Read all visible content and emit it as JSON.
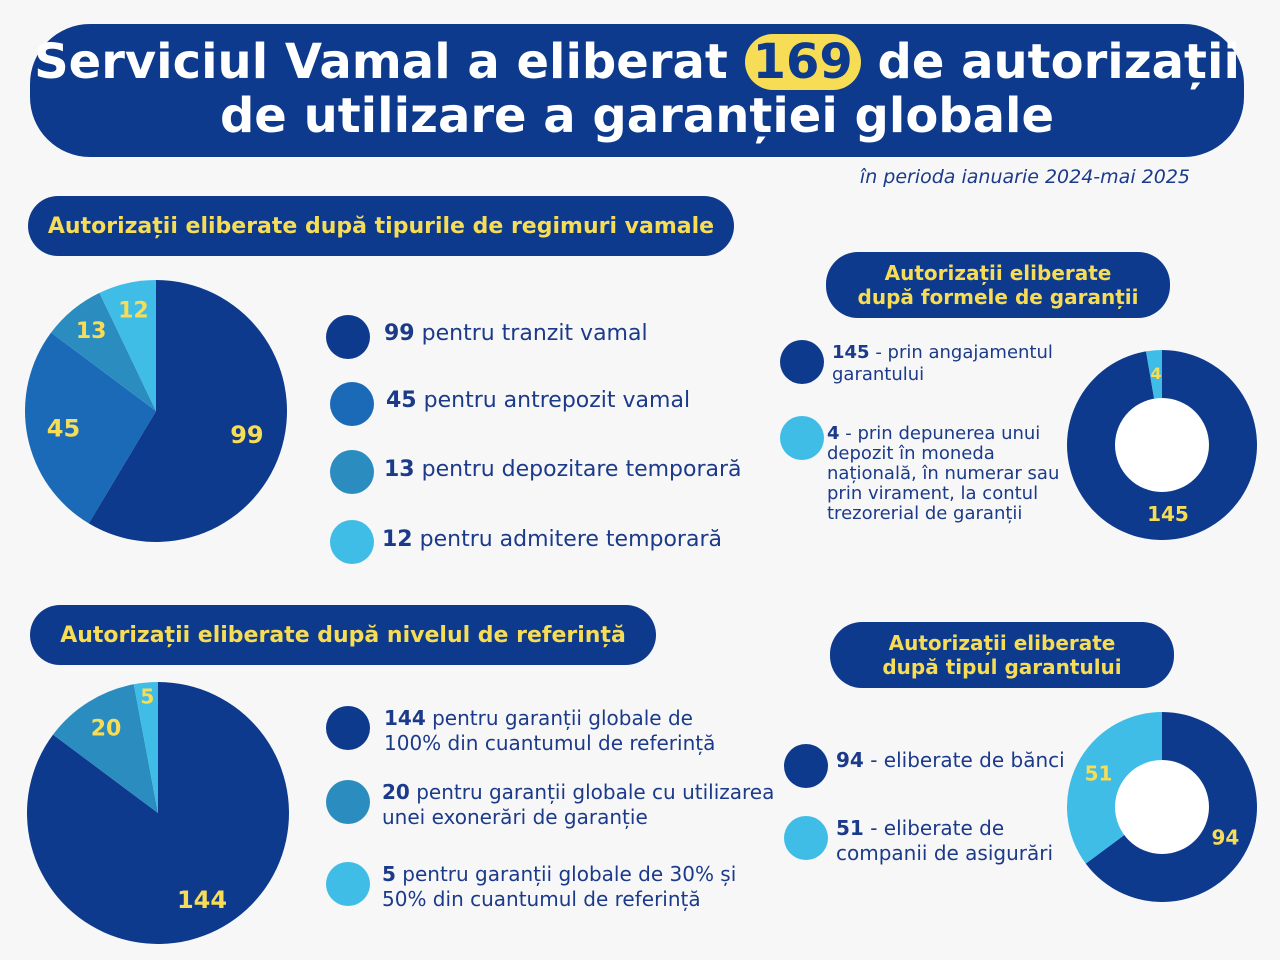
{
  "header": {
    "title_part1": "Serviciul Vamal a eliberat",
    "title_highlight": "169",
    "title_part2": "de autorizații",
    "title_line2": "de utilizare a garanției globale",
    "subtitle": "în perioda ianuarie 2024-mai 2025"
  },
  "colors": {
    "dark_navy": "#0d3a8c",
    "medium_blue": "#1b6ab8",
    "teal_blue": "#2a8cbf",
    "light_blue": "#3fbde6",
    "yellow": "#f7dc56"
  },
  "sections": {
    "regimuri": {
      "title": "Autorizații eliberate după tipurile de regimuri vamale"
    },
    "forme": {
      "title_line1": "Autorizații eliberate",
      "title_line2": "după formele de garanții"
    },
    "nivel": {
      "title": "Autorizații eliberate după nivelul de referință"
    },
    "garant": {
      "title_line1": "Autorizații eliberate",
      "title_line2": "după tipul garantului"
    }
  },
  "chart_data": [
    {
      "type": "pie",
      "categories": [
        "pentru tranzit vamal",
        "pentru antrepozit vamal",
        "pentru depozitare temporară",
        "pentru admitere temporară"
      ],
      "values": [
        99,
        45,
        13,
        12
      ],
      "colors": [
        "#0d3a8c",
        "#1b6ab8",
        "#2a8cbf",
        "#3fbde6"
      ],
      "title": "Autorizații eliberate după tipurile de regimuri vamale"
    },
    {
      "type": "pie",
      "categories": [
        "- prin angajamentul garantului",
        "- prin depunerea unui depozit în moneda națională, în numerar sau prin virament, la contul trezorerial de garanții"
      ],
      "values": [
        145,
        4
      ],
      "colors": [
        "#0d3a8c",
        "#3fbde6"
      ],
      "title": "Autorizații eliberate după formele de garanții"
    },
    {
      "type": "pie",
      "categories": [
        "pentru garanții globale de 100% din cuantumul de referință",
        "pentru garanții globale cu utilizarea unei exonerări de garanție",
        "pentru garanții globale de 30% și 50% din cuantumul de referință"
      ],
      "values": [
        144,
        20,
        5
      ],
      "colors": [
        "#0d3a8c",
        "#2a8cbf",
        "#3fbde6"
      ],
      "title": "Autorizații eliberate după nivelul de referință"
    },
    {
      "type": "pie",
      "categories": [
        "- eliberate de bănci",
        "- eliberate de companii de asigurări"
      ],
      "values": [
        94,
        51
      ],
      "colors": [
        "#0d3a8c",
        "#3fbde6"
      ],
      "title": "Autorizații eliberate după tipul garantului"
    }
  ],
  "legends": {
    "regimuri": [
      {
        "value": "99",
        "text": "pentru tranzit vamal"
      },
      {
        "value": "45",
        "text": "pentru antrepozit vamal"
      },
      {
        "value": "13",
        "text": "pentru depozitare temporară"
      },
      {
        "value": "12",
        "text": "pentru admitere temporară"
      }
    ],
    "forme": [
      {
        "value": "145",
        "text_line1": "- prin angajamentul",
        "text_line2": "garantului"
      },
      {
        "value": "4",
        "text_line1": "- prin depunerea unui",
        "text_line2": "depozit în moneda",
        "text_line3": "națională, în numerar sau",
        "text_line4": "prin virament, la contul",
        "text_line5": "trezorerial de garanții"
      }
    ],
    "nivel": [
      {
        "value": "144",
        "text_line1": "pentru garanții globale de",
        "text_line2": "100% din cuantumul de referință"
      },
      {
        "value": "20",
        "text_line1": "pentru garanții globale cu utilizarea",
        "text_line2": "unei exonerări de garanție"
      },
      {
        "value": "5",
        "text_line1": "pentru garanții globale de 30% și",
        "text_line2": "50% din cuantumul de referință"
      }
    ],
    "garant": [
      {
        "value": "94",
        "text": "- eliberate de bănci"
      },
      {
        "value": "51",
        "text_line1": "- eliberate de",
        "text_line2": "companii de asigurări"
      }
    ]
  }
}
